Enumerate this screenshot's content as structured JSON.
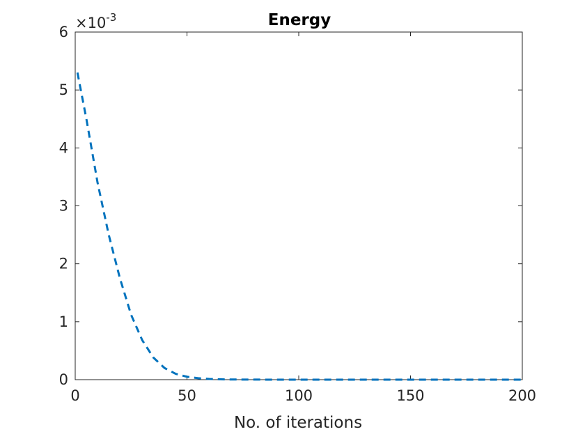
{
  "chart_data": {
    "type": "line",
    "title": "Energy",
    "xlabel": "No. of iterations",
    "ylabel": "",
    "xlim": [
      0,
      200
    ],
    "ylim": [
      0,
      0.006
    ],
    "x_ticks": [
      "0",
      "50",
      "100",
      "150",
      "200"
    ],
    "y_ticks": [
      "0",
      "1",
      "2",
      "3",
      "4",
      "5",
      "6"
    ],
    "y_multiplier": {
      "base": "×10",
      "exponent": "-3"
    },
    "grid": false,
    "series": [
      {
        "color": "#0072BD",
        "style": "dashed",
        "x": [
          1,
          5,
          10,
          15,
          20,
          25,
          30,
          35,
          40,
          45,
          50,
          55,
          60,
          65,
          70,
          80,
          90,
          100,
          120,
          150,
          175,
          200
        ],
        "y": [
          0.0053,
          0.0045,
          0.0034,
          0.0025,
          0.00175,
          0.00112,
          0.00068,
          0.00038,
          0.0002,
          0.0001,
          5e-05,
          2.5e-05,
          1.2e-05,
          6e-06,
          3e-06,
          1e-06,
          4e-07,
          1e-07,
          0,
          0,
          0,
          0
        ]
      }
    ]
  }
}
